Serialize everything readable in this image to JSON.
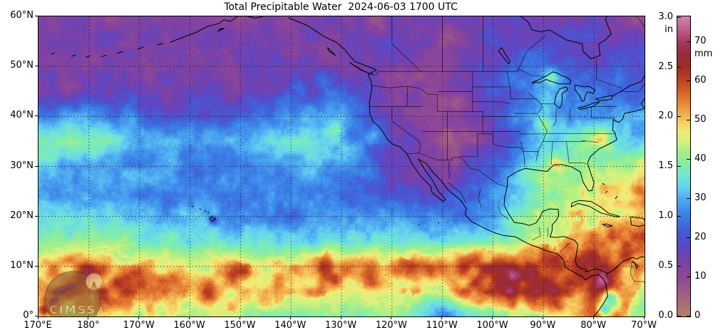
{
  "title": "Total Precipitable Water  2024-06-03 1700 UTC",
  "axes": {
    "x_ticks": [
      {
        "label": "170°E",
        "lonW": 190
      },
      {
        "label": "180°",
        "lonW": 180
      },
      {
        "label": "170°W",
        "lonW": 170
      },
      {
        "label": "160°W",
        "lonW": 160
      },
      {
        "label": "150°W",
        "lonW": 150
      },
      {
        "label": "140°W",
        "lonW": 140
      },
      {
        "label": "130°W",
        "lonW": 130
      },
      {
        "label": "120°W",
        "lonW": 120
      },
      {
        "label": "110°W",
        "lonW": 110
      },
      {
        "label": "100°W",
        "lonW": 100
      },
      {
        "label": "90°W",
        "lonW": 90
      },
      {
        "label": "80°W",
        "lonW": 80
      },
      {
        "label": "70°W",
        "lonW": 70
      }
    ],
    "y_ticks": [
      {
        "label": "60°N",
        "lat": 60
      },
      {
        "label": "50°N",
        "lat": 50
      },
      {
        "label": "40°N",
        "lat": 40
      },
      {
        "label": "30°N",
        "lat": 30
      },
      {
        "label": "20°N",
        "lat": 20
      },
      {
        "label": "10°N",
        "lat": 10
      },
      {
        "label": "0°",
        "lat": 0
      }
    ]
  },
  "colorbar": {
    "unit_left": "in",
    "unit_right": "mm",
    "max_mm": 76.5,
    "ticks_in": [
      {
        "label": "3.0",
        "value": 3.0
      },
      {
        "label": "2.5",
        "value": 2.5
      },
      {
        "label": "2.0",
        "value": 2.0
      },
      {
        "label": "1.5",
        "value": 1.5
      },
      {
        "label": "1.0",
        "value": 1.0
      },
      {
        "label": "0.5",
        "value": 0.5
      },
      {
        "label": "0.0",
        "value": 0.0
      }
    ],
    "ticks_mm": [
      {
        "label": "70",
        "value": 70
      },
      {
        "label": "60",
        "value": 60
      },
      {
        "label": "50",
        "value": 50
      },
      {
        "label": "40",
        "value": 40
      },
      {
        "label": "30",
        "value": 30
      },
      {
        "label": "20",
        "value": 20
      },
      {
        "label": "10",
        "value": 10
      },
      {
        "label": "0",
        "value": 0
      }
    ]
  },
  "logo": {
    "text": "CIMSS"
  },
  "chart_data": {
    "type": "heatmap",
    "title": "Total Precipitable Water",
    "timestamp": "2024-06-03 1700 UTC",
    "units": "mm (and inches)",
    "lon_range_degW": [
      190,
      70
    ],
    "lat_range_degN": [
      0,
      60
    ],
    "grid_lons_degW": [
      190,
      180,
      170,
      160,
      150,
      140,
      130,
      120,
      110,
      100,
      90,
      80,
      70
    ],
    "grid_lats_degN": [
      60,
      55,
      50,
      45,
      40,
      35,
      30,
      25,
      20,
      15,
      10,
      5,
      0
    ],
    "values_mm": [
      [
        13,
        13,
        13,
        13,
        13,
        13,
        14,
        15,
        12,
        14,
        16,
        17,
        12
      ],
      [
        13,
        13,
        13,
        13,
        13,
        14,
        14,
        16,
        9,
        18,
        18,
        16,
        16
      ],
      [
        13,
        13,
        13,
        13,
        14,
        15,
        15,
        12,
        10,
        22,
        24,
        18,
        20
      ],
      [
        14,
        14,
        15,
        15,
        15,
        16,
        20,
        12,
        10,
        20,
        30,
        24,
        24
      ],
      [
        28,
        30,
        22,
        20,
        24,
        30,
        28,
        12,
        9,
        16,
        32,
        26,
        30
      ],
      [
        40,
        42,
        30,
        26,
        30,
        38,
        32,
        18,
        9,
        14,
        34,
        40,
        30
      ],
      [
        32,
        30,
        27,
        25,
        26,
        30,
        30,
        18,
        12,
        20,
        40,
        42,
        36
      ],
      [
        30,
        29,
        27,
        26,
        27,
        26,
        25,
        20,
        16,
        28,
        42,
        46,
        52
      ],
      [
        33,
        32,
        30,
        30,
        28,
        26,
        26,
        28,
        24,
        28,
        44,
        48,
        54
      ],
      [
        38,
        40,
        38,
        36,
        35,
        34,
        33,
        36,
        34,
        40,
        46,
        54,
        56
      ],
      [
        48,
        53,
        51,
        47,
        49,
        51,
        54,
        52,
        57,
        60,
        62,
        58,
        52
      ],
      [
        55,
        58,
        60,
        55,
        52,
        50,
        48,
        50,
        48,
        62,
        64,
        58,
        42
      ],
      [
        44,
        46,
        46,
        44,
        42,
        40,
        40,
        40,
        32,
        36,
        46,
        56,
        38
      ]
    ],
    "anomalies": [
      {
        "lat": 19.2,
        "lonW": 155.4,
        "r": 1.0,
        "dv": -14
      },
      {
        "lat": 36.2,
        "lonW": 123.5,
        "r": 1.6,
        "dv": 9
      },
      {
        "lat": 37.5,
        "lonW": 131.0,
        "r": 1.8,
        "dv": 6
      },
      {
        "lat": 47.5,
        "lonW": 133.5,
        "r": 2.2,
        "dv": 9
      },
      {
        "lat": 45.8,
        "lonW": 138.5,
        "r": 1.8,
        "dv": 6
      },
      {
        "lat": 47.8,
        "lonW": 88.5,
        "r": 1.4,
        "dv": 12
      },
      {
        "lat": 38.5,
        "lonW": 89.5,
        "r": 2.2,
        "dv": 8
      },
      {
        "lat": 36.0,
        "lonW": 78.5,
        "r": 1.6,
        "dv": 10
      },
      {
        "lat": 30.4,
        "lonW": 87.5,
        "r": 1.2,
        "dv": 8
      },
      {
        "lat": 31.0,
        "lonW": 70.5,
        "r": 2.6,
        "dv": 9
      },
      {
        "lat": 26.5,
        "lonW": 71.0,
        "r": 2.2,
        "dv": 6
      },
      {
        "lat": 9.5,
        "lonW": 188.0,
        "r": 2.0,
        "dv": 8
      },
      {
        "lat": 9.0,
        "lonW": 180.0,
        "r": 1.6,
        "dv": 8
      },
      {
        "lat": 9.0,
        "lonW": 150.0,
        "r": 2.4,
        "dv": 9
      },
      {
        "lat": 9.0,
        "lonW": 133.0,
        "r": 2.6,
        "dv": 10
      },
      {
        "lat": 9.5,
        "lonW": 116.0,
        "r": 2.2,
        "dv": 10
      },
      {
        "lat": 8.0,
        "lonW": 95.5,
        "r": 2.2,
        "dv": 10
      },
      {
        "lat": 5.5,
        "lonW": 88.0,
        "r": 1.8,
        "dv": 8
      },
      {
        "lat": 6.5,
        "lonW": 78.5,
        "r": 2.6,
        "dv": 13
      },
      {
        "lat": 1.0,
        "lonW": 189.0,
        "r": 1.4,
        "dv": 14
      },
      {
        "lat": 4.0,
        "lonW": 76.8,
        "r": 1.4,
        "dv": -20
      },
      {
        "lat": 1.0,
        "lonW": 77.9,
        "r": 1.4,
        "dv": -16
      },
      {
        "lat": 1.0,
        "lonW": 110.0,
        "r": 2.5,
        "dv": -6
      },
      {
        "lat": 59.0,
        "lonW": 122.0,
        "r": 2.6,
        "dv": -6
      },
      {
        "lat": 59.0,
        "lonW": 71.5,
        "r": 2.0,
        "dv": -5
      },
      {
        "lat": 43.0,
        "lonW": 107.5,
        "r": 1.8,
        "dv": -4
      }
    ],
    "colormap_stops": [
      [
        0,
        "#b5826b"
      ],
      [
        5,
        "#a56281"
      ],
      [
        10,
        "#8f4796"
      ],
      [
        14,
        "#7a41a8"
      ],
      [
        18,
        "#5c47c4"
      ],
      [
        22,
        "#4060d8"
      ],
      [
        26,
        "#3b82e8"
      ],
      [
        30,
        "#4fadf0"
      ],
      [
        33,
        "#64d3ee"
      ],
      [
        36,
        "#74e6cf"
      ],
      [
        39,
        "#85eda4"
      ],
      [
        42,
        "#abef86"
      ],
      [
        45,
        "#d8f17d"
      ],
      [
        47,
        "#f2ec78"
      ],
      [
        49,
        "#f5d565"
      ],
      [
        52,
        "#f0a94b"
      ],
      [
        55,
        "#e67f33"
      ],
      [
        58,
        "#d05a28"
      ],
      [
        61,
        "#b83c22"
      ],
      [
        64,
        "#a02c28"
      ],
      [
        67,
        "#972c3c"
      ],
      [
        70,
        "#a63a60"
      ],
      [
        73,
        "#bc5d8c"
      ],
      [
        76,
        "#cc82b0"
      ]
    ],
    "grid_on": true,
    "graticule_step_deg": 10
  }
}
